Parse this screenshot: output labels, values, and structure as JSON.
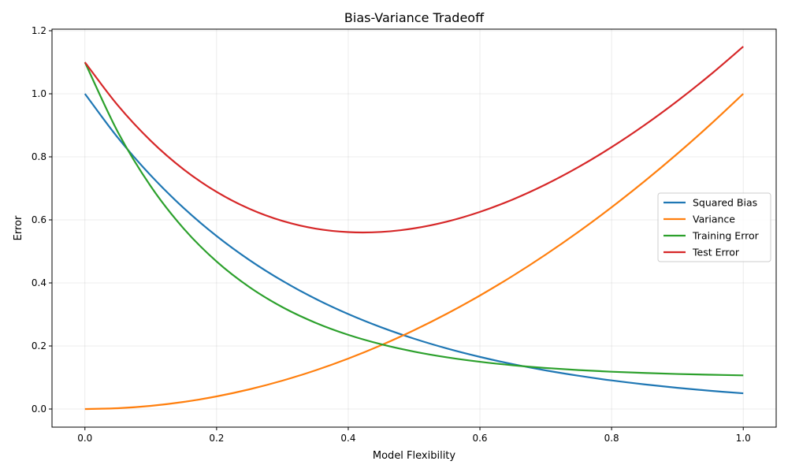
{
  "chart_data": {
    "type": "line",
    "title": "Bias-Variance Tradeoff",
    "xlabel": "Model Flexibility",
    "ylabel": "Error",
    "xlim": [
      -0.05,
      1.05
    ],
    "ylim": [
      -0.0575,
      1.205
    ],
    "xticks": [
      0.0,
      0.2,
      0.4,
      0.6,
      0.8,
      1.0
    ],
    "xtick_labels": [
      "0.0",
      "0.2",
      "0.4",
      "0.6",
      "0.8",
      "1.0"
    ],
    "yticks": [
      0.0,
      0.2,
      0.4,
      0.6,
      0.8,
      1.0,
      1.2
    ],
    "ytick_labels": [
      "0.0",
      "0.2",
      "0.4",
      "0.6",
      "0.8",
      "1.0",
      "1.2"
    ],
    "grid": true,
    "legend_position": "right",
    "x": [
      0,
      0.05,
      0.1,
      0.15,
      0.2,
      0.25,
      0.3,
      0.35,
      0.4,
      0.45,
      0.5,
      0.55,
      0.6,
      0.65,
      0.7,
      0.75,
      0.8,
      0.85,
      0.9,
      0.95,
      1.0
    ],
    "series": [
      {
        "name": "Squared Bias",
        "color": "#1f77b4",
        "values": [
          1,
          0.8607,
          0.7408,
          0.6376,
          0.5488,
          0.4724,
          0.4066,
          0.3499,
          0.3012,
          0.2592,
          0.2231,
          0.192,
          0.1653,
          0.1423,
          0.1225,
          0.1054,
          0.0907,
          0.0781,
          0.0672,
          0.0578,
          0.0498
        ]
      },
      {
        "name": "Variance",
        "color": "#ff7f0e",
        "values": [
          0,
          0.0025,
          0.01,
          0.0225,
          0.04,
          0.0625,
          0.09,
          0.1225,
          0.16,
          0.2025,
          0.25,
          0.3025,
          0.36,
          0.4225,
          0.49,
          0.5625,
          0.64,
          0.7225,
          0.81,
          0.9025,
          1
        ]
      },
      {
        "name": "Training Error",
        "color": "#2ca02c",
        "values": [
          1.1,
          0.8788,
          0.7065,
          0.5724,
          0.4679,
          0.3865,
          0.3231,
          0.2738,
          0.2353,
          0.2054,
          0.1821,
          0.1639,
          0.1498,
          0.1388,
          0.1302,
          0.1235,
          0.1183,
          0.1143,
          0.1111,
          0.1087,
          0.1067
        ]
      },
      {
        "name": "Test Error",
        "color": "#d62728",
        "values": [
          1.1,
          0.9632,
          0.8508,
          0.7601,
          0.6888,
          0.6349,
          0.5966,
          0.5724,
          0.5612,
          0.5617,
          0.5731,
          0.5945,
          0.6253,
          0.6648,
          0.7125,
          0.7679,
          0.8307,
          0.9006,
          0.9772,
          1.0603,
          1.1498
        ]
      }
    ]
  }
}
